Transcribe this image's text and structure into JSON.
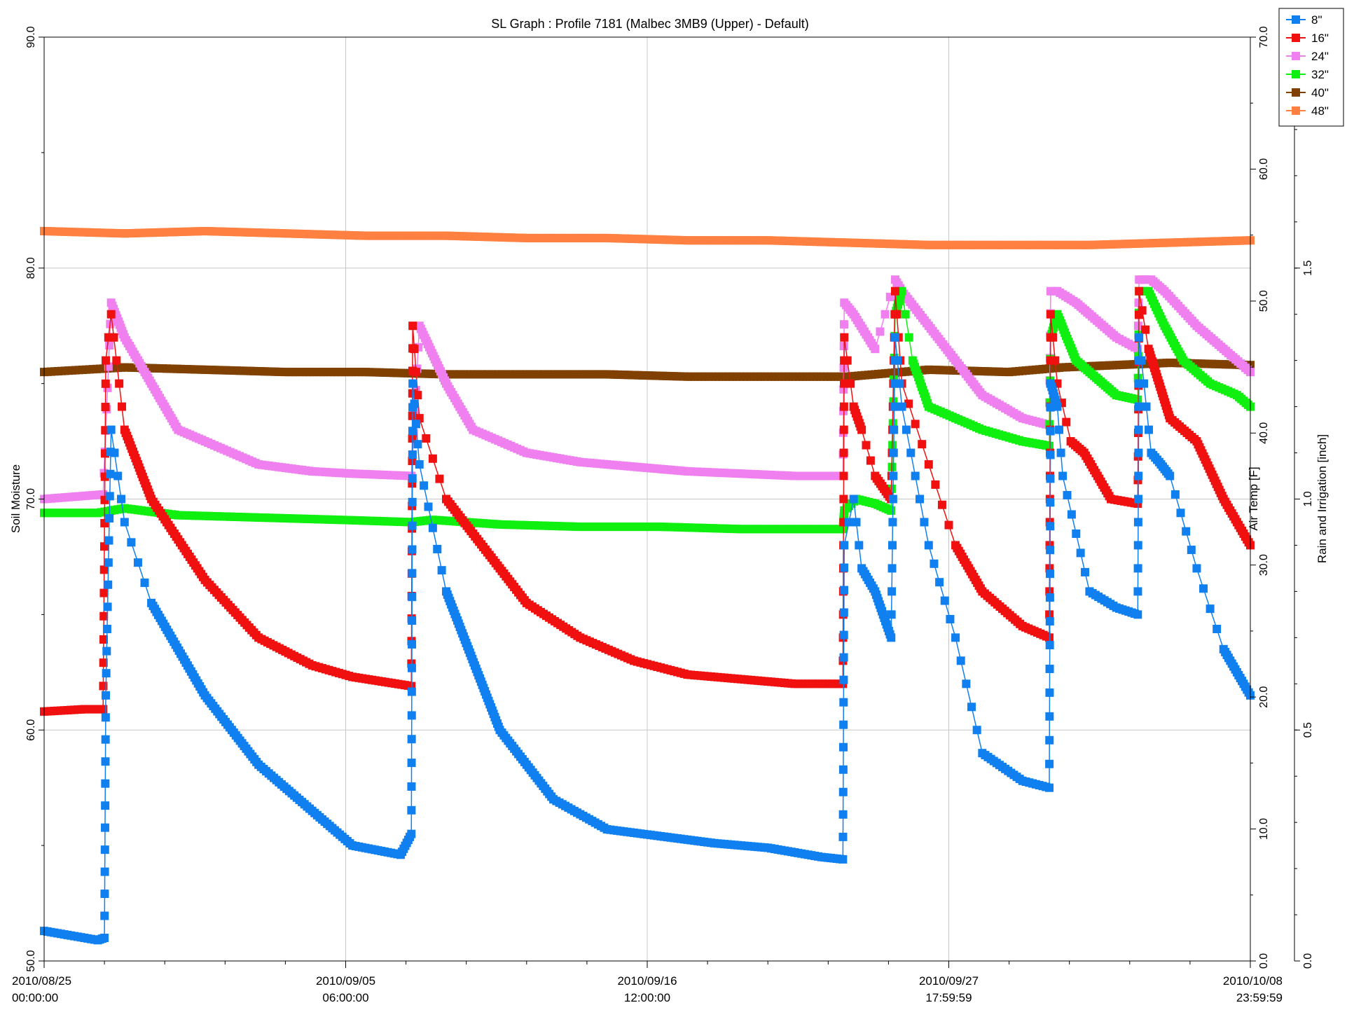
{
  "chart_data": {
    "type": "line",
    "title": "SL Graph : Profile 7181 (Malbec 3MB9 (Upper) - Default)",
    "ylabel": "Soil Moisture",
    "y2label": "Air Temp [F]",
    "y3label": "Rain and Irrigation [inch]",
    "ylim": [
      50,
      90
    ],
    "y2lim": [
      0,
      70
    ],
    "y3lim": [
      0,
      2.0
    ],
    "xlim": [
      "2010-08-25 00:00:00",
      "2010-10-08 23:59:59"
    ],
    "grid": true,
    "legend_position": "top-right",
    "x_tick_labels": [
      {
        "x": 0.0,
        "line1": "2010/08/25",
        "line2": "00:00:00"
      },
      {
        "x": 11.25,
        "line1": "2010/09/05",
        "line2": "06:00:00"
      },
      {
        "x": 22.5,
        "line1": "2010/09/16",
        "line2": "12:00:00"
      },
      {
        "x": 33.75,
        "line1": "2010/09/27",
        "line2": "17:59:59"
      },
      {
        "x": 45.0,
        "line1": "2010/10/08",
        "line2": "23:59:59"
      }
    ],
    "y_ticks": [
      {
        "v": 50,
        "label": "50.0"
      },
      {
        "v": 60,
        "label": "60.0"
      },
      {
        "v": 70,
        "label": "70.0"
      },
      {
        "v": 80,
        "label": "80.0"
      },
      {
        "v": 90,
        "label": "90.0"
      }
    ],
    "y2_ticks": [
      {
        "v": 0,
        "label": "0.0"
      },
      {
        "v": 10,
        "label": "10.0"
      },
      {
        "v": 20,
        "label": "20.0"
      },
      {
        "v": 30,
        "label": "30.0"
      },
      {
        "v": 40,
        "label": "40.0"
      },
      {
        "v": 50,
        "label": "50.0"
      },
      {
        "v": 60,
        "label": "60.0"
      },
      {
        "v": 70,
        "label": "70.0"
      }
    ],
    "y3_ticks": [
      {
        "v": 0,
        "label": "0.0"
      },
      {
        "v": 0.5,
        "label": "0.5"
      },
      {
        "v": 1.0,
        "label": "1.0"
      },
      {
        "v": 1.5,
        "label": "1.5"
      }
    ],
    "series": [
      {
        "name": "8\"",
        "color": "#1080f0",
        "x": [
          0,
          2.0,
          2.25,
          2.3,
          2.5,
          3,
          4,
          6,
          8,
          10,
          11.5,
          13.3,
          13.7,
          13.75,
          14,
          15,
          17,
          19,
          21,
          23,
          25,
          27,
          29,
          29.8,
          29.85,
          30.2,
          30.5,
          31,
          31.6,
          31.75,
          32,
          33,
          34,
          35,
          36.5,
          37.5,
          37.55,
          37.8,
          38,
          38.5,
          39,
          40,
          40.8,
          40.85,
          41.3,
          41.6,
          42,
          43,
          44,
          45
        ],
        "y": [
          51.3,
          50.9,
          51.0,
          61.5,
          73.0,
          69.0,
          65.5,
          61.5,
          58.5,
          56.5,
          55.0,
          54.6,
          55.5,
          75.0,
          71.5,
          66.0,
          60.0,
          57.0,
          55.7,
          55.4,
          55.1,
          54.9,
          54.5,
          54.4,
          68.0,
          70.0,
          67.0,
          66.0,
          64.0,
          77.0,
          74.0,
          68.0,
          64.0,
          59.0,
          57.8,
          57.5,
          75.0,
          74.0,
          71.0,
          68.5,
          66.0,
          65.3,
          65.0,
          77.0,
          72.0,
          71.6,
          71.0,
          67.0,
          63.5,
          61.5
        ]
      },
      {
        "name": "16\"",
        "color": "#f01010",
        "x": [
          0,
          1.5,
          2.2,
          2.3,
          2.5,
          3,
          4,
          6,
          8,
          10,
          11.5,
          13.7,
          13.75,
          14,
          15,
          16,
          18,
          20,
          22,
          24,
          26,
          28,
          29.8,
          29.85,
          30.2,
          30.5,
          31,
          31.6,
          31.75,
          32,
          33,
          34,
          35,
          36.5,
          37.5,
          37.55,
          37.8,
          38.3,
          38.8,
          39.3,
          39.8,
          40.8,
          40.85,
          41.2,
          41.6,
          42,
          43,
          44,
          45
        ],
        "y": [
          60.8,
          60.9,
          60.9,
          76.0,
          78.0,
          73.0,
          70.0,
          66.5,
          64.0,
          62.8,
          62.3,
          61.9,
          77.5,
          73.5,
          70.0,
          68.5,
          65.5,
          64.0,
          63.0,
          62.4,
          62.2,
          62.0,
          62.0,
          77.0,
          74.0,
          73.0,
          71.0,
          70.0,
          79.0,
          75.0,
          71.5,
          68.0,
          66.0,
          64.5,
          64.0,
          78.0,
          75.0,
          72.5,
          72.0,
          71.0,
          70.0,
          69.8,
          79.0,
          76.5,
          75.0,
          73.5,
          72.5,
          70.0,
          68.0
        ]
      },
      {
        "name": "24\"",
        "color": "#f080f0",
        "x": [
          0,
          2.2,
          2.5,
          3,
          4,
          5,
          6,
          8,
          10,
          11.5,
          13.7,
          14.0,
          15,
          16,
          18,
          20,
          22,
          24,
          26,
          28,
          29.8,
          29.85,
          30.2,
          31,
          31.75,
          32,
          33,
          34,
          35,
          36.5,
          37.5,
          37.55,
          37.8,
          38.5,
          39.0,
          40.0,
          40.8,
          40.85,
          41.3,
          41.8,
          43,
          44,
          45
        ],
        "y": [
          70.0,
          70.2,
          78.5,
          77.0,
          75.0,
          73.0,
          72.5,
          71.5,
          71.2,
          71.1,
          71.0,
          77.5,
          75.0,
          73.0,
          72.0,
          71.6,
          71.4,
          71.2,
          71.1,
          71.0,
          71.0,
          78.5,
          78.0,
          76.5,
          79.5,
          79.0,
          77.5,
          76.0,
          74.5,
          73.5,
          73.2,
          79.0,
          79.0,
          78.5,
          78.0,
          77.0,
          76.5,
          79.5,
          79.5,
          79.0,
          77.5,
          76.5,
          75.5
        ]
      },
      {
        "name": "32\"",
        "color": "#10f010",
        "x": [
          0,
          2,
          2.5,
          3,
          5,
          8,
          11,
          13.7,
          14.5,
          17,
          20,
          23,
          26,
          29.8,
          29.85,
          30.3,
          31.0,
          31.6,
          31.75,
          32.0,
          32.4,
          33.0,
          34.0,
          35.0,
          36.5,
          37.5,
          37.55,
          37.8,
          38.5,
          39.0,
          39.5,
          40.0,
          40.8,
          40.85,
          41.2,
          41.8,
          42.5,
          43.5,
          44.5,
          45
        ],
        "y": [
          69.4,
          69.4,
          69.5,
          69.6,
          69.3,
          69.2,
          69.1,
          69.0,
          69.1,
          68.9,
          68.8,
          68.8,
          68.7,
          68.7,
          69.5,
          70.0,
          69.8,
          69.5,
          78.0,
          79.0,
          76.0,
          74.0,
          73.5,
          73.0,
          72.5,
          72.3,
          77.0,
          78.0,
          76.0,
          75.5,
          75.0,
          74.5,
          74.3,
          79.0,
          79.0,
          77.5,
          76.0,
          75.0,
          74.5,
          74.0
        ]
      },
      {
        "name": "40\"",
        "color": "#804000",
        "x": [
          0,
          3,
          6,
          9,
          12,
          15,
          18,
          21,
          24,
          27,
          30,
          33,
          36,
          38,
          40,
          42,
          45
        ],
        "y": [
          75.5,
          75.7,
          75.6,
          75.5,
          75.5,
          75.4,
          75.4,
          75.4,
          75.3,
          75.3,
          75.3,
          75.6,
          75.5,
          75.7,
          75.8,
          75.9,
          75.8
        ]
      },
      {
        "name": "48\"",
        "color": "#ff8040",
        "x": [
          0,
          3,
          6,
          9,
          12,
          15,
          18,
          21,
          24,
          27,
          30,
          33,
          36,
          39,
          42,
          45
        ],
        "y": [
          81.6,
          81.5,
          81.6,
          81.5,
          81.4,
          81.4,
          81.3,
          81.3,
          81.2,
          81.2,
          81.1,
          81.0,
          81.0,
          81.0,
          81.1,
          81.2
        ]
      }
    ]
  }
}
